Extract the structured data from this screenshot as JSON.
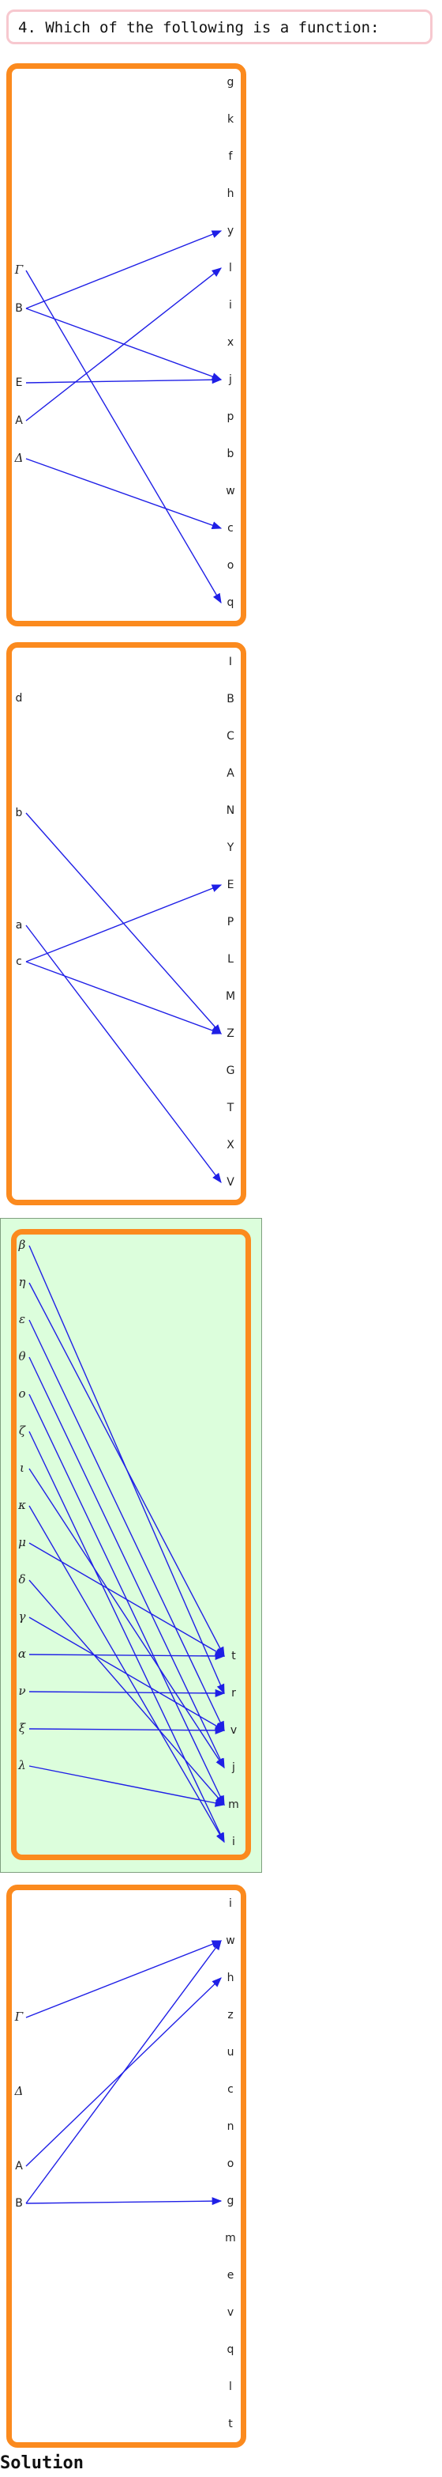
{
  "question": {
    "text": "4. Which of the following is a function:"
  },
  "solution_label": "Solution",
  "colors": {
    "panel_border": "#fb8a1e",
    "arrow": "#1f1fe6",
    "highlight_bg": "#dcfedc",
    "highlight_border": "#7f9f7f"
  },
  "panels": [
    {
      "highlight": false,
      "left": [
        "Γ",
        "B",
        "E",
        "A",
        "Δ"
      ],
      "right": [
        "g",
        "k",
        "f",
        "h",
        "y",
        "l",
        "i",
        "x",
        "j",
        "p",
        "b",
        "w",
        "c",
        "o",
        "q"
      ],
      "mapping": [
        [
          "Γ",
          "q"
        ],
        [
          "B",
          "y"
        ],
        [
          "B",
          "j"
        ],
        [
          "E",
          "j"
        ],
        [
          "A",
          "l"
        ],
        [
          "Δ",
          "c"
        ]
      ]
    },
    {
      "highlight": false,
      "left": [
        "d",
        "b",
        "a",
        "c"
      ],
      "right": [
        "I",
        "B",
        "C",
        "A",
        "N",
        "Y",
        "E",
        "P",
        "L",
        "M",
        "Z",
        "G",
        "T",
        "X",
        "V"
      ],
      "mapping": [
        [
          "b",
          "Z"
        ],
        [
          "a",
          "V"
        ],
        [
          "c",
          "E"
        ],
        [
          "c",
          "Z"
        ]
      ]
    },
    {
      "highlight": true,
      "left": [
        "β",
        "η",
        "ε",
        "θ",
        "ο",
        "ζ",
        "ι",
        "κ",
        "μ",
        "δ",
        "γ",
        "α",
        "ν",
        "ξ",
        "λ"
      ],
      "right": [
        "t",
        "r",
        "v",
        "j",
        "m",
        "i"
      ],
      "mapping": [
        [
          "β",
          "r"
        ],
        [
          "η",
          "t"
        ],
        [
          "ε",
          "v"
        ],
        [
          "θ",
          "j"
        ],
        [
          "ο",
          "m"
        ],
        [
          "ζ",
          "i"
        ],
        [
          "ι",
          "j"
        ],
        [
          "κ",
          "i"
        ],
        [
          "μ",
          "t"
        ],
        [
          "δ",
          "m"
        ],
        [
          "γ",
          "v"
        ],
        [
          "α",
          "t"
        ],
        [
          "ν",
          "r"
        ],
        [
          "ξ",
          "v"
        ],
        [
          "λ",
          "m"
        ]
      ]
    },
    {
      "highlight": false,
      "left": [
        "Γ",
        "Δ",
        "A",
        "B"
      ],
      "right": [
        "i",
        "w",
        "h",
        "z",
        "u",
        "c",
        "n",
        "o",
        "g",
        "m",
        "e",
        "v",
        "q",
        "l",
        "t"
      ],
      "mapping": [
        [
          "Γ",
          "w"
        ],
        [
          "A",
          "h"
        ],
        [
          "B",
          "w"
        ],
        [
          "B",
          "g"
        ]
      ]
    }
  ]
}
